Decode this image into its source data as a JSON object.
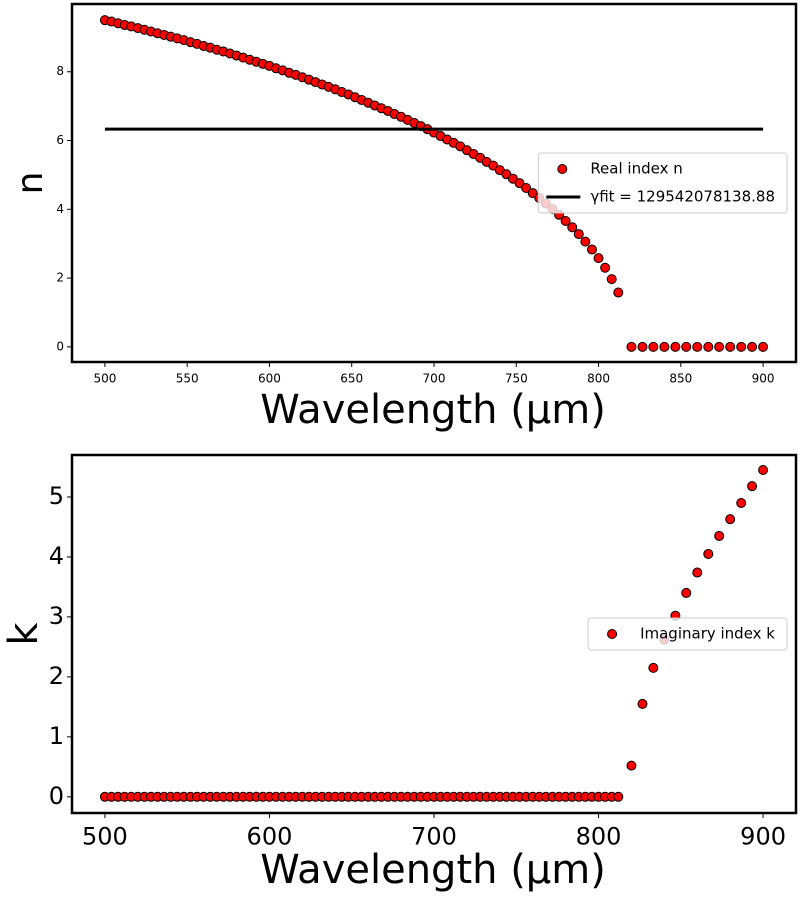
{
  "chart_data": [
    {
      "type": "scatter",
      "xlabel": "Wavelength (µm)",
      "ylabel": "n",
      "x": [
        500,
        504,
        508,
        512,
        516,
        520,
        524,
        528,
        532,
        536,
        540,
        544,
        548,
        552,
        556,
        560,
        564,
        568,
        572,
        576,
        580,
        584,
        588,
        592,
        596,
        600,
        604,
        608,
        612,
        616,
        620,
        624,
        628,
        632,
        636,
        640,
        644,
        648,
        652,
        656,
        660,
        664,
        668,
        672,
        676,
        680,
        684,
        688,
        692,
        696,
        700,
        704,
        708,
        712,
        716,
        720,
        724,
        728,
        732,
        736,
        740,
        744,
        748,
        752,
        756,
        760,
        764,
        768,
        772,
        776,
        780,
        784,
        788,
        792,
        796,
        800,
        804,
        808,
        812,
        820,
        826.7,
        833.3,
        840,
        846.7,
        853.3,
        860,
        866.7,
        873.3,
        880,
        886.7,
        893.3,
        900
      ],
      "series": [
        {
          "name": "Real index n",
          "mark": "marker",
          "color": "#ff0000",
          "values": [
            9.5,
            9.46,
            9.41,
            9.36,
            9.32,
            9.27,
            9.22,
            9.17,
            9.12,
            9.07,
            9.02,
            8.97,
            8.92,
            8.86,
            8.81,
            8.75,
            8.7,
            8.64,
            8.59,
            8.53,
            8.47,
            8.41,
            8.35,
            8.29,
            8.23,
            8.17,
            8.1,
            8.04,
            7.97,
            7.91,
            7.84,
            7.77,
            7.7,
            7.63,
            7.56,
            7.49,
            7.41,
            7.34,
            7.26,
            7.18,
            7.1,
            7.02,
            6.94,
            6.86,
            6.77,
            6.69,
            6.6,
            6.51,
            6.42,
            6.33,
            6.23,
            6.13,
            6.03,
            5.93,
            5.83,
            5.72,
            5.61,
            5.5,
            5.38,
            5.27,
            5.14,
            5.02,
            4.89,
            4.76,
            4.62,
            4.47,
            4.33,
            4.17,
            4.01,
            3.84,
            3.66,
            3.48,
            3.28,
            3.06,
            2.83,
            2.58,
            2.3,
            1.97,
            1.58,
            0,
            0,
            0,
            0,
            0,
            0,
            0,
            0,
            0,
            0,
            0,
            0,
            0
          ]
        },
        {
          "name": "γfit = 129542078138.88",
          "mark": "line",
          "color": "#000000",
          "x": [
            500,
            900
          ],
          "values": [
            6.33,
            6.33
          ]
        }
      ],
      "xlim": [
        480,
        920
      ],
      "ylim": [
        -0.44,
        9.97
      ],
      "xticks": [
        500,
        550,
        600,
        650,
        700,
        750,
        800,
        850,
        900
      ],
      "yticks": [
        0,
        2,
        4,
        6,
        8
      ],
      "legend": "center right"
    },
    {
      "type": "scatter",
      "xlabel": "Wavelength (µm)",
      "ylabel": "k",
      "x": [
        500,
        504,
        508,
        512,
        516,
        520,
        524,
        528,
        532,
        536,
        540,
        544,
        548,
        552,
        556,
        560,
        564,
        568,
        572,
        576,
        580,
        584,
        588,
        592,
        596,
        600,
        604,
        608,
        612,
        616,
        620,
        624,
        628,
        632,
        636,
        640,
        644,
        648,
        652,
        656,
        660,
        664,
        668,
        672,
        676,
        680,
        684,
        688,
        692,
        696,
        700,
        704,
        708,
        712,
        716,
        720,
        724,
        728,
        732,
        736,
        740,
        744,
        748,
        752,
        756,
        760,
        764,
        768,
        772,
        776,
        780,
        784,
        788,
        792,
        796,
        800,
        804,
        808,
        812,
        820,
        826.7,
        833.3,
        840,
        846.7,
        853.3,
        860,
        866.7,
        873.3,
        880,
        886.7,
        893.3,
        900
      ],
      "series": [
        {
          "name": "Imaginary index k",
          "mark": "marker",
          "color": "#ff0000",
          "values": [
            0,
            0,
            0,
            0,
            0,
            0,
            0,
            0,
            0,
            0,
            0,
            0,
            0,
            0,
            0,
            0,
            0,
            0,
            0,
            0,
            0,
            0,
            0,
            0,
            0,
            0,
            0,
            0,
            0,
            0,
            0,
            0,
            0,
            0,
            0,
            0,
            0,
            0,
            0,
            0,
            0,
            0,
            0,
            0,
            0,
            0,
            0,
            0,
            0,
            0,
            0,
            0,
            0,
            0,
            0,
            0,
            0,
            0,
            0,
            0,
            0,
            0,
            0,
            0,
            0,
            0,
            0,
            0,
            0,
            0,
            0,
            0,
            0,
            0,
            0,
            0,
            0,
            0,
            0,
            0.52,
            1.55,
            2.15,
            2.62,
            3.02,
            3.4,
            3.74,
            4.05,
            4.35,
            4.63,
            4.9,
            5.18,
            5.45
          ]
        }
      ],
      "xlim": [
        480,
        920
      ],
      "ylim": [
        -0.27,
        5.7
      ],
      "xticks": [
        500,
        600,
        700,
        800,
        900
      ],
      "yticks": [
        0,
        1,
        2,
        3,
        4,
        5
      ],
      "legend": "center right"
    }
  ]
}
